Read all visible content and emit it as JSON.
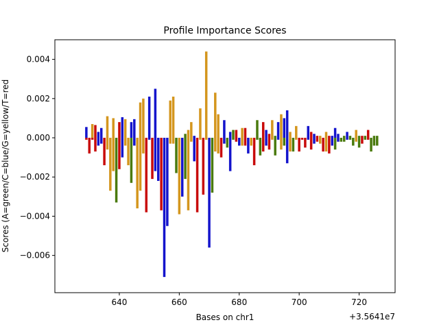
{
  "chart_data": {
    "type": "bar",
    "title": "Profile Importance Scores",
    "xlabel": "Bases on chr1",
    "ylabel": "Scores (A=green/C=blue/G=yellow/T=red",
    "x_offset_label": "+3.5641e7",
    "xlim": [
      618.5,
      732
    ],
    "ylim": [
      -0.0079,
      0.005
    ],
    "x_ticks": [
      640,
      660,
      680,
      700,
      720
    ],
    "y_ticks": [
      -0.006,
      -0.004,
      -0.002,
      0.0,
      0.002,
      0.004
    ],
    "y_tick_labels": [
      "−0.006",
      "−0.004",
      "−0.002",
      "0.000",
      "0.002",
      "0.004"
    ],
    "colors": {
      "A": "#4a7a0e",
      "C": "#1414cc",
      "G": "#d4961e",
      "T": "#c80a0a"
    },
    "series": [
      {
        "x": 629,
        "pos_base": "C",
        "pos": 0.00055,
        "neg_base": "T",
        "neg": -0.0001
      },
      {
        "x": 630,
        "pos_base": "T",
        "pos": 0.0,
        "neg_base": "T",
        "neg": -0.0008
      },
      {
        "x": 631,
        "pos_base": "G",
        "pos": 0.0007,
        "neg_base": "T",
        "neg": -0.0001
      },
      {
        "x": 632,
        "pos_base": "T",
        "pos": 0.00065,
        "neg_base": "T",
        "neg": -0.0007
      },
      {
        "x": 633,
        "pos_base": "C",
        "pos": 0.0003,
        "neg_base": "C",
        "neg": -0.0004
      },
      {
        "x": 634,
        "pos_base": "C",
        "pos": 0.0005,
        "neg_base": "C",
        "neg": -0.0003
      },
      {
        "x": 635,
        "pos_base": "T",
        "pos": 0.0,
        "neg_base": "T",
        "neg": -0.0014
      },
      {
        "x": 636,
        "pos_base": "G",
        "pos": 0.0011,
        "neg_base": "G",
        "neg": -0.0006
      },
      {
        "x": 637,
        "pos_base": "G",
        "pos": 0.0,
        "neg_base": "G",
        "neg": -0.0027
      },
      {
        "x": 638,
        "pos_base": "G",
        "pos": 0.001,
        "neg_base": "G",
        "neg": -0.0017
      },
      {
        "x": 639,
        "pos_base": "A",
        "pos": 0.0,
        "neg_base": "A",
        "neg": -0.0033
      },
      {
        "x": 640,
        "pos_base": "T",
        "pos": 0.0008,
        "neg_base": "T",
        "neg": -0.0016
      },
      {
        "x": 641,
        "pos_base": "C",
        "pos": 0.00105,
        "neg_base": "C",
        "neg": -0.001
      },
      {
        "x": 642,
        "pos_base": "G",
        "pos": 0.00095,
        "neg_base": "G",
        "neg": -0.0004
      },
      {
        "x": 643,
        "pos_base": "G",
        "pos": 0.0,
        "neg_base": "G",
        "neg": -0.0014
      },
      {
        "x": 644,
        "pos_base": "C",
        "pos": 0.0008,
        "neg_base": "A",
        "neg": -0.0023
      },
      {
        "x": 645,
        "pos_base": "C",
        "pos": 0.00095,
        "neg_base": "C",
        "neg": -0.0004
      },
      {
        "x": 646,
        "pos_base": "G",
        "pos": 0.0,
        "neg_base": "G",
        "neg": -0.0036
      },
      {
        "x": 647,
        "pos_base": "G",
        "pos": 0.0018,
        "neg_base": "G",
        "neg": -0.0027
      },
      {
        "x": 648,
        "pos_base": "G",
        "pos": 0.002,
        "neg_base": "G",
        "neg": -0.0008
      },
      {
        "x": 649,
        "pos_base": "T",
        "pos": 0.0,
        "neg_base": "T",
        "neg": -0.0038
      },
      {
        "x": 650,
        "pos_base": "C",
        "pos": 0.0021,
        "neg_base": "C",
        "neg": -0.0001
      },
      {
        "x": 651,
        "pos_base": "T",
        "pos": 0.0,
        "neg_base": "T",
        "neg": -0.0021
      },
      {
        "x": 652,
        "pos_base": "C",
        "pos": 0.0025,
        "neg_base": "C",
        "neg": -0.0017
      },
      {
        "x": 653,
        "pos_base": "C",
        "pos": 0.0,
        "neg_base": "C",
        "neg": -0.0022
      },
      {
        "x": 654,
        "pos_base": "T",
        "pos": 0.0,
        "neg_base": "T",
        "neg": -0.0037
      },
      {
        "x": 655,
        "pos_base": "C",
        "pos": 0.0,
        "neg_base": "C",
        "neg": -0.0071
      },
      {
        "x": 656,
        "pos_base": "C",
        "pos": 0.0,
        "neg_base": "C",
        "neg": -0.0045
      },
      {
        "x": 657,
        "pos_base": "G",
        "pos": 0.0019,
        "neg_base": "G",
        "neg": -0.0003
      },
      {
        "x": 658,
        "pos_base": "G",
        "pos": 0.0021,
        "neg_base": "G",
        "neg": -0.0003
      },
      {
        "x": 659,
        "pos_base": "A",
        "pos": 0.0,
        "neg_base": "A",
        "neg": -0.0018
      },
      {
        "x": 660,
        "pos_base": "G",
        "pos": 0.0,
        "neg_base": "G",
        "neg": -0.0039
      },
      {
        "x": 661,
        "pos_base": "C",
        "pos": 0.0,
        "neg_base": "C",
        "neg": -0.003
      },
      {
        "x": 662,
        "pos_base": "A",
        "pos": 0.0002,
        "neg_base": "A",
        "neg": -0.0021
      },
      {
        "x": 663,
        "pos_base": "G",
        "pos": 0.0004,
        "neg_base": "G",
        "neg": -0.0037
      },
      {
        "x": 664,
        "pos_base": "G",
        "pos": 0.0008,
        "neg_base": "G",
        "neg": -0.0002
      },
      {
        "x": 665,
        "pos_base": "C",
        "pos": 0.0001,
        "neg_base": "C",
        "neg": -0.0012
      },
      {
        "x": 666,
        "pos_base": "T",
        "pos": 0.0,
        "neg_base": "T",
        "neg": -0.0038
      },
      {
        "x": 667,
        "pos_base": "G",
        "pos": 0.0015,
        "neg_base": "G",
        "neg": -0.0001
      },
      {
        "x": 668,
        "pos_base": "T",
        "pos": 0.0,
        "neg_base": "T",
        "neg": -0.0029
      },
      {
        "x": 669,
        "pos_base": "G",
        "pos": 0.0044,
        "neg_base": "G",
        "neg": -0.0001
      },
      {
        "x": 670,
        "pos_base": "C",
        "pos": 0.0,
        "neg_base": "C",
        "neg": -0.0056
      },
      {
        "x": 671,
        "pos_base": "A",
        "pos": 0.0,
        "neg_base": "A",
        "neg": -0.0028
      },
      {
        "x": 672,
        "pos_base": "G",
        "pos": 0.0023,
        "neg_base": "G",
        "neg": -0.0007
      },
      {
        "x": 673,
        "pos_base": "G",
        "pos": 0.0012,
        "neg_base": "G",
        "neg": -0.0008
      },
      {
        "x": 674,
        "pos_base": "T",
        "pos": 0.0,
        "neg_base": "T",
        "neg": -0.001
      },
      {
        "x": 675,
        "pos_base": "C",
        "pos": 0.0009,
        "neg_base": "C",
        "neg": -0.0003
      },
      {
        "x": 676,
        "pos_base": "A",
        "pos": 0.0,
        "neg_base": "A",
        "neg": -0.0005
      },
      {
        "x": 677,
        "pos_base": "C",
        "pos": 0.0003,
        "neg_base": "C",
        "neg": -0.0017
      },
      {
        "x": 678,
        "pos_base": "A",
        "pos": 0.0004,
        "neg_base": "A",
        "neg": -0.0001
      },
      {
        "x": 679,
        "pos_base": "T",
        "pos": 0.0004,
        "neg_base": "T",
        "neg": -0.0002
      },
      {
        "x": 680,
        "pos_base": "C",
        "pos": 0.0,
        "neg_base": "C",
        "neg": -0.0004
      },
      {
        "x": 681,
        "pos_base": "G",
        "pos": 0.0005,
        "neg_base": "G",
        "neg": -0.0004
      },
      {
        "x": 682,
        "pos_base": "T",
        "pos": 0.0005,
        "neg_base": "T",
        "neg": -0.0004
      },
      {
        "x": 683,
        "pos_base": "C",
        "pos": 0.0,
        "neg_base": "C",
        "neg": -0.0008
      },
      {
        "x": 684,
        "pos_base": "G",
        "pos": 0.0,
        "neg_base": "G",
        "neg": -0.0004
      },
      {
        "x": 685,
        "pos_base": "T",
        "pos": 0.0,
        "neg_base": "T",
        "neg": -0.0014
      },
      {
        "x": 686,
        "pos_base": "A",
        "pos": 0.0009,
        "neg_base": "A",
        "neg": -0.0001
      },
      {
        "x": 687,
        "pos_base": "A",
        "pos": 0.0,
        "neg_base": "A",
        "neg": -0.0009
      },
      {
        "x": 688,
        "pos_base": "T",
        "pos": 0.0008,
        "neg_base": "T",
        "neg": -0.0007
      },
      {
        "x": 689,
        "pos_base": "C",
        "pos": 0.0004,
        "neg_base": "C",
        "neg": -0.0004
      },
      {
        "x": 690,
        "pos_base": "T",
        "pos": 0.0002,
        "neg_base": "T",
        "neg": -0.0006
      },
      {
        "x": 691,
        "pos_base": "G",
        "pos": 0.0009,
        "neg_base": "G",
        "neg": -0.0001
      },
      {
        "x": 692,
        "pos_base": "A",
        "pos": 0.0001,
        "neg_base": "A",
        "neg": -0.0009
      },
      {
        "x": 693,
        "pos_base": "C",
        "pos": 0.0008,
        "neg_base": "C",
        "neg": -0.0001
      },
      {
        "x": 694,
        "pos_base": "G",
        "pos": 0.0012,
        "neg_base": "G",
        "neg": -0.0006
      },
      {
        "x": 695,
        "pos_base": "C",
        "pos": 0.001,
        "neg_base": "A",
        "neg": -0.0004
      },
      {
        "x": 696,
        "pos_base": "C",
        "pos": 0.0014,
        "neg_base": "C",
        "neg": -0.0013
      },
      {
        "x": 697,
        "pos_base": "G",
        "pos": 0.0003,
        "neg_base": "G",
        "neg": -0.0007
      },
      {
        "x": 698,
        "pos_base": "A",
        "pos": 0.0,
        "neg_base": "A",
        "neg": -0.0007
      },
      {
        "x": 699,
        "pos_base": "G",
        "pos": 0.0006,
        "neg_base": "G",
        "neg": -0.0001
      },
      {
        "x": 700,
        "pos_base": "T",
        "pos": 0.0,
        "neg_base": "T",
        "neg": -0.0007
      },
      {
        "x": 701,
        "pos_base": "T",
        "pos": 0.0,
        "neg_base": "T",
        "neg": -0.0001
      },
      {
        "x": 702,
        "pos_base": "T",
        "pos": 0.0,
        "neg_base": "T",
        "neg": -0.0005
      },
      {
        "x": 703,
        "pos_base": "C",
        "pos": 0.0006,
        "neg_base": "C",
        "neg": -0.0001
      },
      {
        "x": 704,
        "pos_base": "T",
        "pos": 0.0003,
        "neg_base": "T",
        "neg": -0.0006
      },
      {
        "x": 705,
        "pos_base": "C",
        "pos": 0.0002,
        "neg_base": "C",
        "neg": -0.0003
      },
      {
        "x": 706,
        "pos_base": "T",
        "pos": 0.0001,
        "neg_base": "T",
        "neg": -0.0002
      },
      {
        "x": 707,
        "pos_base": "G",
        "pos": 0.0001,
        "neg_base": "G",
        "neg": -0.0003
      },
      {
        "x": 708,
        "pos_base": "T",
        "pos": 0.0,
        "neg_base": "T",
        "neg": -0.0007
      },
      {
        "x": 709,
        "pos_base": "G",
        "pos": 0.0003,
        "neg_base": "G",
        "neg": -0.0007
      },
      {
        "x": 710,
        "pos_base": "T",
        "pos": 0.0001,
        "neg_base": "T",
        "neg": -0.0008
      },
      {
        "x": 711,
        "pos_base": "C",
        "pos": 0.0001,
        "neg_base": "C",
        "neg": -0.0004
      },
      {
        "x": 712,
        "pos_base": "C",
        "pos": 0.0005,
        "neg_base": "A",
        "neg": -0.0006
      },
      {
        "x": 713,
        "pos_base": "C",
        "pos": 0.0002,
        "neg_base": "C",
        "neg": -0.0002
      },
      {
        "x": 714,
        "pos_base": "A",
        "pos": 0.0,
        "neg_base": "A",
        "neg": -0.0002
      },
      {
        "x": 715,
        "pos_base": "A",
        "pos": 0.0001,
        "neg_base": "A",
        "neg": -0.0002
      },
      {
        "x": 716,
        "pos_base": "C",
        "pos": 0.0003,
        "neg_base": "C",
        "neg": -0.0001
      },
      {
        "x": 717,
        "pos_base": "A",
        "pos": 0.0001,
        "neg_base": "A",
        "neg": -0.0001
      },
      {
        "x": 718,
        "pos_base": "A",
        "pos": 0.0,
        "neg_base": "A",
        "neg": -0.0004
      },
      {
        "x": 719,
        "pos_base": "G",
        "pos": 0.0004,
        "neg_base": "G",
        "neg": -0.0002
      },
      {
        "x": 720,
        "pos_base": "A",
        "pos": 0.0001,
        "neg_base": "A",
        "neg": -0.0005
      },
      {
        "x": 721,
        "pos_base": "T",
        "pos": 0.0001,
        "neg_base": "T",
        "neg": -0.0003
      },
      {
        "x": 722,
        "pos_base": "A",
        "pos": 0.0001,
        "neg_base": "A",
        "neg": -0.0001
      },
      {
        "x": 723,
        "pos_base": "T",
        "pos": 0.0004,
        "neg_base": "T",
        "neg": -0.0001
      },
      {
        "x": 724,
        "pos_base": "A",
        "pos": 0.0,
        "neg_base": "A",
        "neg": -0.0007
      },
      {
        "x": 725,
        "pos_base": "A",
        "pos": 0.0001,
        "neg_base": "A",
        "neg": -0.0004
      },
      {
        "x": 726,
        "pos_base": "A",
        "pos": 0.0001,
        "neg_base": "A",
        "neg": -0.0004
      }
    ]
  }
}
